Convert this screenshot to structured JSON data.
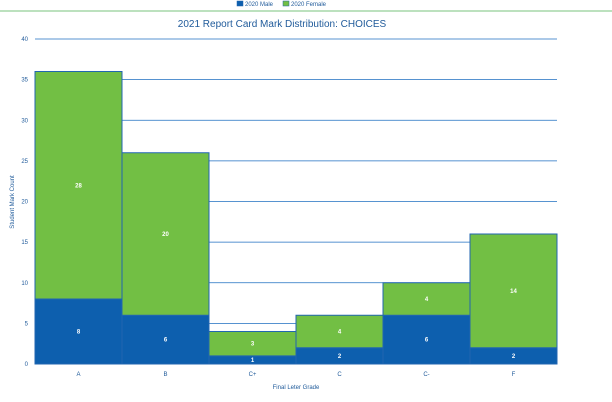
{
  "chart_data": {
    "type": "bar",
    "stacked": true,
    "title": "2021 Report Card Mark Distribution: CHOICES",
    "xlabel": "Final Leter Grade",
    "ylabel": "Student Mark Count",
    "ylim": [
      0,
      40
    ],
    "yticks": [
      "0",
      "5",
      "10",
      "15",
      "20",
      "25",
      "30",
      "35",
      "40"
    ],
    "categories": [
      "A",
      "B",
      "C+",
      "C",
      "C-",
      "F"
    ],
    "series": [
      {
        "name": "2020 Male",
        "values": [
          8,
          6,
          1,
          2,
          6,
          2
        ],
        "color": "#0d5fae"
      },
      {
        "name": "2020 Female",
        "values": [
          28,
          20,
          3,
          4,
          4,
          14
        ],
        "color": "#72bf44"
      }
    ],
    "grid": true,
    "legend": "top"
  },
  "colors": {
    "gridline": "#1f6fc1",
    "bar_border": "#2166b0",
    "text": "#1f5a9a"
  }
}
